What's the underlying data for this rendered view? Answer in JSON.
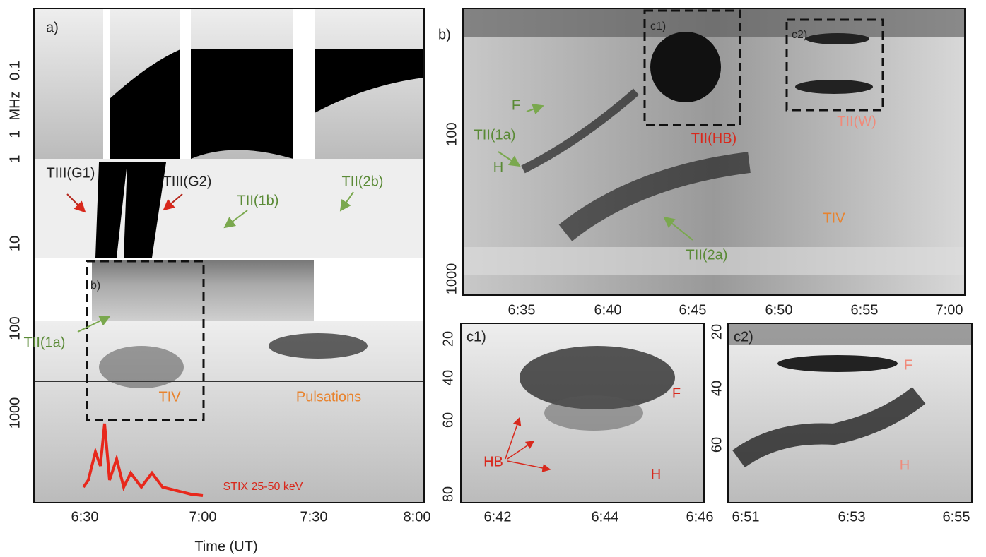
{
  "panels": [
    {
      "label": "a)",
      "y_label": "MHz",
      "x_label": "Time (UT)",
      "yticks": [
        "0.1",
        "1",
        "1",
        "10",
        "100",
        "1000"
      ],
      "xticks": [
        "6:30",
        "7:00",
        "7:30",
        "8:00"
      ],
      "annotations": [
        "TIII(G1)",
        "TIII(G2)",
        "TII(1b)",
        "TII(2b)",
        "b)",
        "TII(1a)",
        "TIV",
        "Pulsations",
        "STIX 25-50 keV"
      ]
    },
    {
      "label": "b)",
      "yticks": [
        "100",
        "1000"
      ],
      "xticks": [
        "6:35",
        "6:40",
        "6:45",
        "6:50",
        "6:55",
        "7:00"
      ],
      "annotations": [
        "c1)",
        "c2)",
        "F",
        "TII(1a)",
        "H",
        "TII(HB)",
        "TII(W)",
        "TIV",
        "TII(2a)"
      ]
    },
    {
      "label": "c1)",
      "yticks": [
        "20",
        "40",
        "60",
        "80"
      ],
      "xticks": [
        "6:42",
        "6:44",
        "6:46"
      ],
      "annotations": [
        "HB",
        "F",
        "H"
      ]
    },
    {
      "label": "c2)",
      "yticks": [
        "20",
        "40",
        "60"
      ],
      "xticks": [
        "6:51",
        "6:53",
        "6:55"
      ],
      "annotations": [
        "F",
        "H"
      ]
    }
  ]
}
